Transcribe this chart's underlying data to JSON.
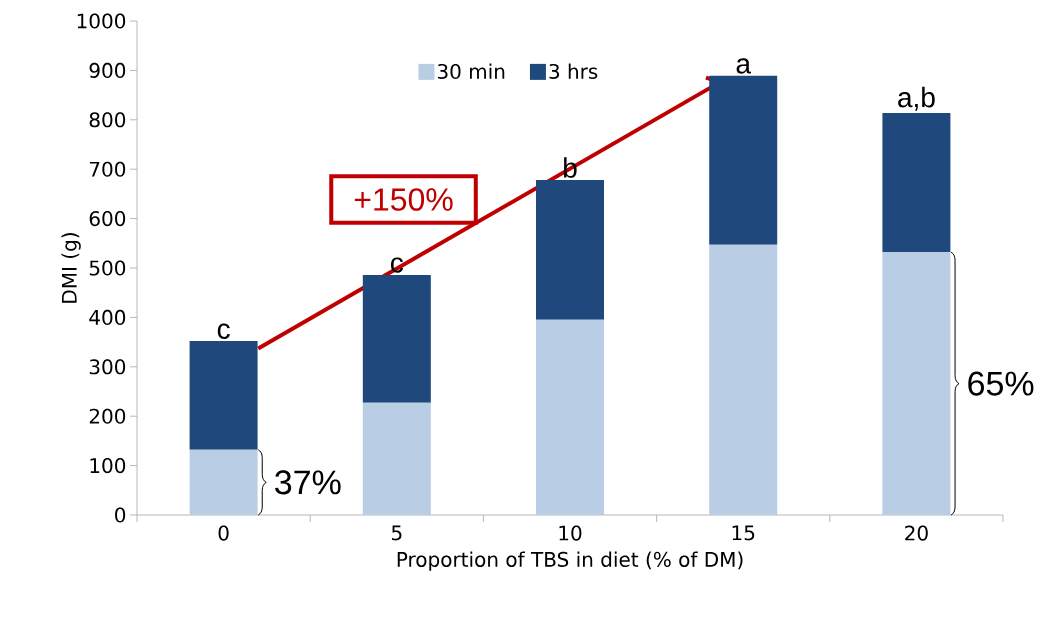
{
  "chart_data": {
    "type": "bar",
    "stacked": true,
    "xlabel": "Proportion of TBS in diet (% of DM)",
    "ylabel": "DMI (g)",
    "categories": [
      "0",
      "5",
      "10",
      "15",
      "20"
    ],
    "series": [
      {
        "name": "30 min",
        "color": "#b9cde5",
        "values": [
          132,
          227,
          395,
          547,
          532
        ]
      },
      {
        "name": "3 hrs",
        "color": "#1f497d",
        "values": [
          220,
          259,
          283,
          342,
          282
        ]
      }
    ],
    "ylim": [
      0,
      1000
    ],
    "yticks": [
      0,
      100,
      200,
      300,
      400,
      500,
      600,
      700,
      800,
      900,
      1000
    ],
    "grid": false,
    "legend": "top",
    "annotations": [
      {
        "text": "c",
        "x": "0",
        "y": 352
      },
      {
        "text": "c",
        "x": "5",
        "y": 486
      },
      {
        "text": "b",
        "x": "10",
        "y": 678
      },
      {
        "text": "a",
        "x": "15",
        "y": 889
      },
      {
        "text": "a,b",
        "x": "20",
        "y": 814
      },
      "+150%",
      "37%",
      "65%"
    ]
  }
}
